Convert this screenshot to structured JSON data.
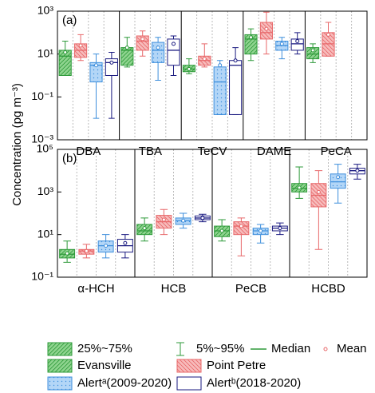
{
  "ylabel": "Concentration (pg m⁻³)",
  "legend": {
    "box": "25%~75%",
    "whisker": "5%~95%",
    "median": "Median",
    "mean": "Mean"
  },
  "chart_data": [
    {
      "type": "box",
      "panel_label": "(a)",
      "yscale": "log",
      "ylim": [
        0.001,
        1000
      ],
      "yticks": [
        {
          "value": 0.001,
          "label": "10⁻³"
        },
        {
          "value": 0.1,
          "label": "10⁻¹"
        },
        {
          "value": 10,
          "label": "10¹"
        },
        {
          "value": 1000,
          "label": "10³"
        }
      ],
      "categories": [
        "DBA",
        "TBA",
        "TeCV",
        "DAME",
        "PeCA"
      ],
      "series": [
        {
          "name": "Evansville",
          "color": "#2e9a3a",
          "fill": "#8fd48f",
          "pattern": "hatch-right",
          "values": [
            {
              "whislo": 1,
              "q1": 1,
              "med": 8,
              "q3": 15,
              "whishi": 40,
              "mean": 12
            },
            {
              "whislo": 2.5,
              "q1": 3,
              "med": 15,
              "q3": 20,
              "whishi": 60,
              "mean": 20
            },
            {
              "whislo": 1.2,
              "q1": 1.5,
              "med": 2,
              "q3": 3,
              "whishi": 6,
              "mean": 2
            },
            {
              "whislo": 5,
              "q1": 10,
              "med": 50,
              "q3": 80,
              "whishi": 150,
              "mean": 60
            },
            {
              "whislo": 4,
              "q1": 6,
              "med": 10,
              "q3": 20,
              "whishi": 30,
              "mean": 15
            }
          ]
        },
        {
          "name": "Point Petre",
          "color": "#e8686a",
          "fill": "#f7bcbc",
          "pattern": "hatch-left",
          "values": [
            {
              "whislo": 5,
              "q1": 7,
              "med": 15,
              "q3": 30,
              "whishi": 80,
              "mean": 25
            },
            {
              "whislo": 8,
              "q1": 15,
              "med": 40,
              "q3": 70,
              "whishi": 120,
              "mean": 50
            },
            {
              "whislo": 2.5,
              "q1": 3,
              "med": 5,
              "q3": 8,
              "whishi": 30,
              "mean": 6
            },
            {
              "whislo": 10,
              "q1": 50,
              "med": 100,
              "q3": 300,
              "whishi": 900,
              "mean": 150
            },
            {
              "whislo": 8,
              "q1": 8,
              "med": 30,
              "q3": 100,
              "whishi": 300,
              "mean": 80
            }
          ]
        },
        {
          "name": "Alertᵃ(2009-2020)",
          "color": "#3f8fdc",
          "fill": "#b3d6f7",
          "pattern": "dots",
          "values": [
            {
              "whislo": 0.01,
              "q1": 0.5,
              "med": 3,
              "q3": 4,
              "whishi": 10,
              "mean": 3
            },
            {
              "whislo": 0.6,
              "q1": 4,
              "med": 15,
              "q3": 35,
              "whishi": 60,
              "mean": 20
            },
            {
              "whislo": 0.015,
              "q1": 0.015,
              "med": 0.5,
              "q3": 2.5,
              "whishi": 5,
              "mean": 3
            },
            {
              "whislo": 6,
              "q1": 15,
              "med": 25,
              "q3": 40,
              "whishi": 60,
              "mean": 30
            },
            null
          ]
        },
        {
          "name": "Alertᵇ(2018-2020)",
          "color": "#1a1a80",
          "fill": "#ffffff",
          "pattern": "none",
          "values": [
            {
              "whislo": 0.01,
              "q1": 1,
              "med": 4,
              "q3": 6,
              "whishi": 12,
              "mean": 4
            },
            {
              "whislo": 1,
              "q1": 3,
              "med": 15,
              "q3": 50,
              "whishi": 70,
              "mean": 30
            },
            {
              "whislo": 0.015,
              "q1": 0.015,
              "med": 3,
              "q3": 5,
              "whishi": 20,
              "mean": 5
            },
            {
              "whislo": 10,
              "q1": 15,
              "med": 30,
              "q3": 50,
              "whishi": 100,
              "mean": 40
            },
            null
          ]
        }
      ]
    },
    {
      "type": "box",
      "panel_label": "(b)",
      "yscale": "log",
      "ylim": [
        0.1,
        100000
      ],
      "yticks": [
        {
          "value": 0.1,
          "label": "10⁻¹"
        },
        {
          "value": 10,
          "label": "10¹"
        },
        {
          "value": 1000,
          "label": "10³"
        },
        {
          "value": 100000,
          "label": "10⁵"
        }
      ],
      "categories": [
        "α-HCH",
        "HCB",
        "PeCB",
        "HCBD"
      ],
      "series": [
        {
          "name": "Evansville",
          "color": "#2e9a3a",
          "fill": "#8fd48f",
          "pattern": "hatch-right",
          "values": [
            {
              "whislo": 0.5,
              "q1": 0.8,
              "med": 1.2,
              "q3": 2,
              "whishi": 5,
              "mean": 1.3
            },
            {
              "whislo": 5,
              "q1": 10,
              "med": 15,
              "q3": 30,
              "whishi": 60,
              "mean": 20
            },
            {
              "whislo": 5,
              "q1": 8,
              "med": 15,
              "q3": 25,
              "whishi": 50,
              "mean": 15
            },
            {
              "whislo": 500,
              "q1": 1000,
              "med": 1500,
              "q3": 2500,
              "whishi": 15000,
              "mean": 1600
            }
          ]
        },
        {
          "name": "Point Petre",
          "color": "#e8686a",
          "fill": "#f7bcbc",
          "pattern": "hatch-left",
          "values": [
            {
              "whislo": 0.8,
              "q1": 1.2,
              "med": 1.7,
              "q3": 2,
              "whishi": 3.5,
              "mean": 1.7
            },
            {
              "whislo": 10,
              "q1": 20,
              "med": 40,
              "q3": 80,
              "whishi": 150,
              "mean": 50
            },
            {
              "whislo": 1,
              "q1": 10,
              "med": 25,
              "q3": 40,
              "whishi": 60,
              "mean": 25
            },
            {
              "whislo": 2,
              "q1": 200,
              "med": 700,
              "q3": 2500,
              "whishi": 10000,
              "mean": 1000
            }
          ]
        },
        {
          "name": "Alertᵃ(2009-2020)",
          "color": "#3f8fdc",
          "fill": "#b3d6f7",
          "pattern": "dots",
          "values": [
            {
              "whislo": 0.8,
              "q1": 1.5,
              "med": 3,
              "q3": 5,
              "whishi": 10,
              "mean": 3
            },
            {
              "whislo": 20,
              "q1": 30,
              "med": 45,
              "q3": 60,
              "whishi": 100,
              "mean": 45
            },
            {
              "whislo": 4,
              "q1": 10,
              "med": 15,
              "q3": 20,
              "whishi": 30,
              "mean": 15
            },
            {
              "whislo": 300,
              "q1": 1500,
              "med": 3000,
              "q3": 7000,
              "whishi": 20000,
              "mean": 5000
            }
          ]
        },
        {
          "name": "Alertᵇ(2018-2020)",
          "color": "#1a1a80",
          "fill": "#ffffff",
          "pattern": "none",
          "values": [
            {
              "whislo": 0.8,
              "q1": 1.5,
              "med": 3,
              "q3": 6,
              "whishi": 10,
              "mean": 4
            },
            {
              "whislo": 40,
              "q1": 50,
              "med": 60,
              "q3": 75,
              "whishi": 90,
              "mean": 60
            },
            {
              "whislo": 10,
              "q1": 15,
              "med": 20,
              "q3": 25,
              "whishi": 35,
              "mean": 20
            },
            {
              "whislo": 4000,
              "q1": 7000,
              "med": 10000,
              "q3": 13000,
              "whishi": 20000,
              "mean": 10000
            }
          ]
        }
      ]
    }
  ]
}
